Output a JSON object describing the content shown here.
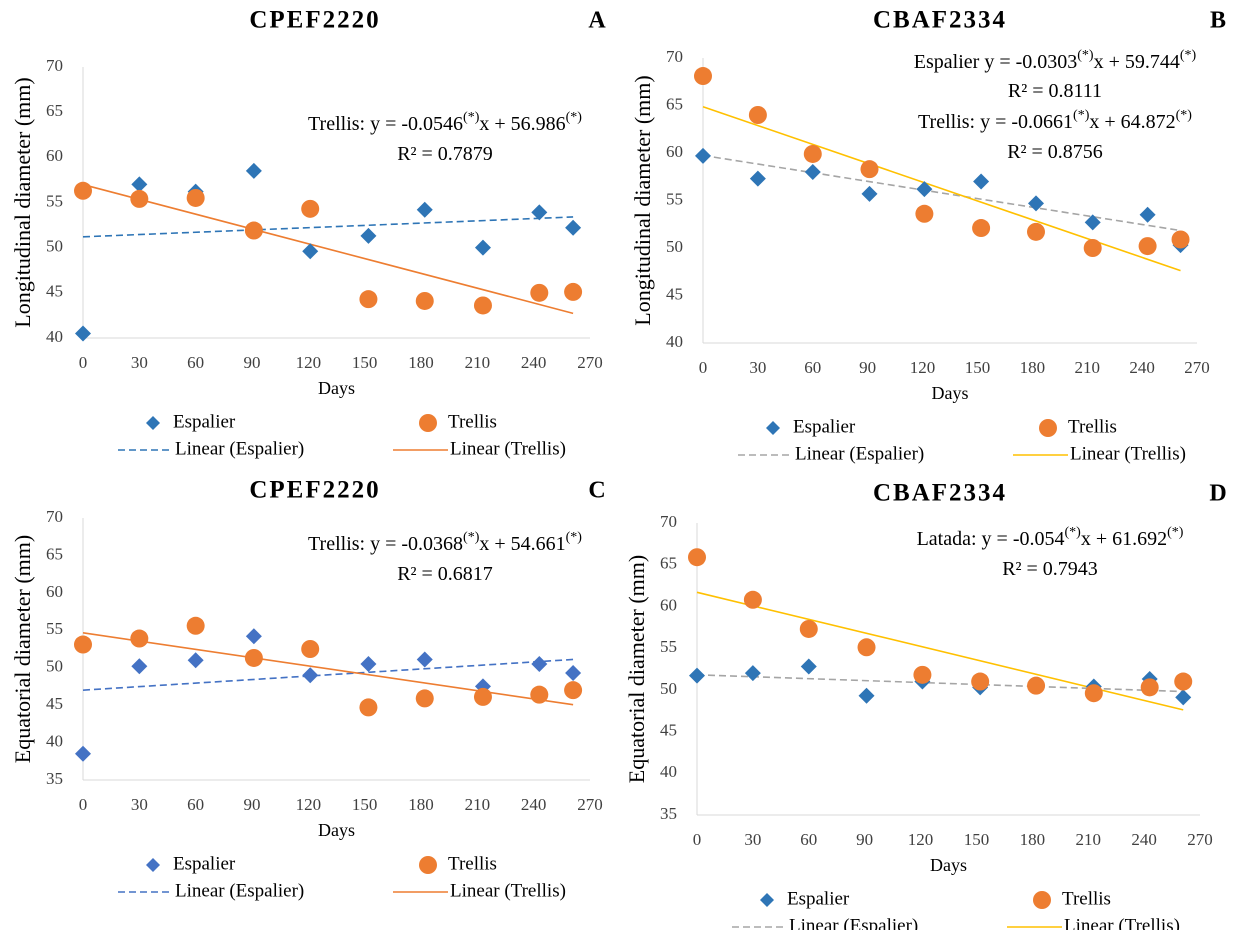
{
  "chart_data": [
    {
      "type": "scatter",
      "title": "CPEF2220",
      "panel_label": "A",
      "xlabel": "Days",
      "ylabel": "Longitudinal diameter (mm)",
      "xlim": [
        0,
        270
      ],
      "xticks": [
        0,
        30,
        60,
        90,
        120,
        150,
        180,
        210,
        240,
        270
      ],
      "ylim": [
        40,
        70
      ],
      "yticks": [
        40,
        45,
        50,
        55,
        60,
        65,
        70
      ],
      "x": [
        0,
        30,
        60,
        91,
        121,
        152,
        182,
        213,
        243,
        261
      ],
      "series": [
        {
          "name": "Espalier",
          "color": "#2e75b6",
          "marker": "diamond",
          "values": [
            40.5,
            57,
            56.2,
            58.5,
            49.6,
            51.3,
            54.2,
            50,
            53.9,
            52.2
          ]
        },
        {
          "name": "Trellis",
          "color": "#ed7d31",
          "marker": "circle",
          "values": [
            56.3,
            55.4,
            55.5,
            51.9,
            54.3,
            44.3,
            44.1,
            43.6,
            45,
            45.1
          ]
        },
        {
          "name": "Linear (Espalier)",
          "color": "#2e75b6",
          "dashed": true,
          "x": [
            0,
            261
          ],
          "values": [
            51.2,
            53.4
          ]
        },
        {
          "name": "Linear (Trellis)",
          "color": "#ed7d31",
          "dashed": false,
          "x": [
            0,
            261
          ],
          "values": [
            56.986,
            42.73
          ]
        }
      ],
      "annotations": [
        [
          "Trellis:  y = -0.0546",
          "(*)",
          "x + 56.986",
          "(*)"
        ],
        [
          "R² = 0.7879"
        ]
      ]
    },
    {
      "type": "scatter",
      "title": "CBAF2334",
      "panel_label": "B",
      "xlabel": "Days",
      "ylabel": "Longitudinal diameter (mm)",
      "xlim": [
        0,
        270
      ],
      "xticks": [
        0,
        30,
        60,
        90,
        120,
        150,
        180,
        210,
        240,
        270
      ],
      "ylim": [
        40,
        70
      ],
      "yticks": [
        40,
        45,
        50,
        55,
        60,
        65,
        70
      ],
      "x": [
        0,
        30,
        60,
        91,
        121,
        152,
        182,
        213,
        243,
        261
      ],
      "series": [
        {
          "name": "Espalier",
          "color": "#2e75b6",
          "marker": "diamond",
          "values": [
            59.7,
            57.3,
            58,
            55.7,
            56.2,
            57,
            54.7,
            52.7,
            53.5,
            50.3
          ]
        },
        {
          "name": "Trellis",
          "color": "#ed7d31",
          "marker": "circle",
          "values": [
            68.1,
            64,
            59.9,
            58.3,
            53.6,
            52.1,
            51.7,
            50,
            50.2,
            50.9
          ]
        },
        {
          "name": "Linear (Espalier)",
          "color": "#a5a5a5",
          "dashed": true,
          "x": [
            0,
            261
          ],
          "values": [
            59.744,
            51.84
          ]
        },
        {
          "name": "Linear (Trellis)",
          "color": "#ffc000",
          "dashed": false,
          "x": [
            0,
            261
          ],
          "values": [
            64.872,
            47.62
          ]
        }
      ],
      "annotations": [
        [
          "Espalier y = -0.0303",
          "(*)",
          "x + 59.744",
          "(*)"
        ],
        [
          "R² = 0.8111"
        ],
        [
          "Trellis:  y = -0.0661",
          "(*)",
          "x + 64.872",
          "(*)"
        ],
        [
          "R² = 0.8756"
        ]
      ]
    },
    {
      "type": "scatter",
      "title": "CPEF2220",
      "panel_label": "C",
      "xlabel": "Days",
      "ylabel": "Equatorial diameter (mm)",
      "xlim": [
        0,
        270
      ],
      "xticks": [
        0,
        30,
        60,
        90,
        120,
        150,
        180,
        210,
        240,
        270
      ],
      "ylim": [
        35,
        70
      ],
      "yticks": [
        35,
        40,
        45,
        50,
        55,
        60,
        65,
        70
      ],
      "x": [
        0,
        30,
        60,
        91,
        121,
        152,
        182,
        213,
        243,
        261
      ],
      "series": [
        {
          "name": "Espalier",
          "color": "#4472c4",
          "marker": "diamond",
          "values": [
            38.5,
            50.2,
            51,
            54.2,
            49,
            50.5,
            51.1,
            47.5,
            50.5,
            49.3
          ]
        },
        {
          "name": "Trellis",
          "color": "#ed7d31",
          "marker": "circle",
          "values": [
            53.1,
            53.9,
            55.6,
            51.3,
            52.5,
            44.7,
            45.9,
            46.1,
            46.4,
            47
          ]
        },
        {
          "name": "Linear (Espalier)",
          "color": "#4472c4",
          "dashed": true,
          "x": [
            0,
            261
          ],
          "values": [
            47,
            51.1
          ]
        },
        {
          "name": "Linear (Trellis)",
          "color": "#ed7d31",
          "dashed": false,
          "x": [
            0,
            261
          ],
          "values": [
            54.661,
            45.06
          ]
        }
      ],
      "annotations": [
        [
          "Trellis:  y = -0.0368",
          "(*)",
          "x + 54.661",
          "(*)"
        ],
        [
          "R² = 0.6817"
        ]
      ]
    },
    {
      "type": "scatter",
      "title": "CBAF2334",
      "panel_label": "D",
      "xlabel": "Days",
      "ylabel": "Equatorial diameter (mm)",
      "xlim": [
        0,
        270
      ],
      "xticks": [
        0,
        30,
        60,
        90,
        120,
        150,
        180,
        210,
        240,
        270
      ],
      "ylim": [
        35,
        70
      ],
      "yticks": [
        35,
        40,
        45,
        50,
        55,
        60,
        65,
        70
      ],
      "x": [
        0,
        30,
        60,
        91,
        121,
        152,
        182,
        213,
        243,
        261
      ],
      "series": [
        {
          "name": "Espalier",
          "color": "#2e75b6",
          "marker": "diamond",
          "values": [
            51.7,
            52,
            52.8,
            49.3,
            51,
            50.3,
            50.5,
            50.4,
            51.3,
            49.1
          ]
        },
        {
          "name": "Trellis",
          "color": "#ed7d31",
          "marker": "circle",
          "values": [
            65.9,
            60.8,
            57.3,
            55.1,
            51.8,
            51,
            50.5,
            49.6,
            50.3,
            51
          ]
        },
        {
          "name": "Linear (Espalier)",
          "color": "#a5a5a5",
          "dashed": true,
          "x": [
            0,
            261
          ],
          "values": [
            51.8,
            49.8
          ]
        },
        {
          "name": "Linear (Trellis)",
          "color": "#ffc000",
          "dashed": false,
          "x": [
            0,
            261
          ],
          "values": [
            61.692,
            47.6
          ]
        }
      ],
      "annotations": [
        [
          "Latada: y = -0.054",
          "(*)",
          "x + 61.692",
          "(*)"
        ],
        [
          "R² = 0.7943"
        ]
      ]
    }
  ]
}
